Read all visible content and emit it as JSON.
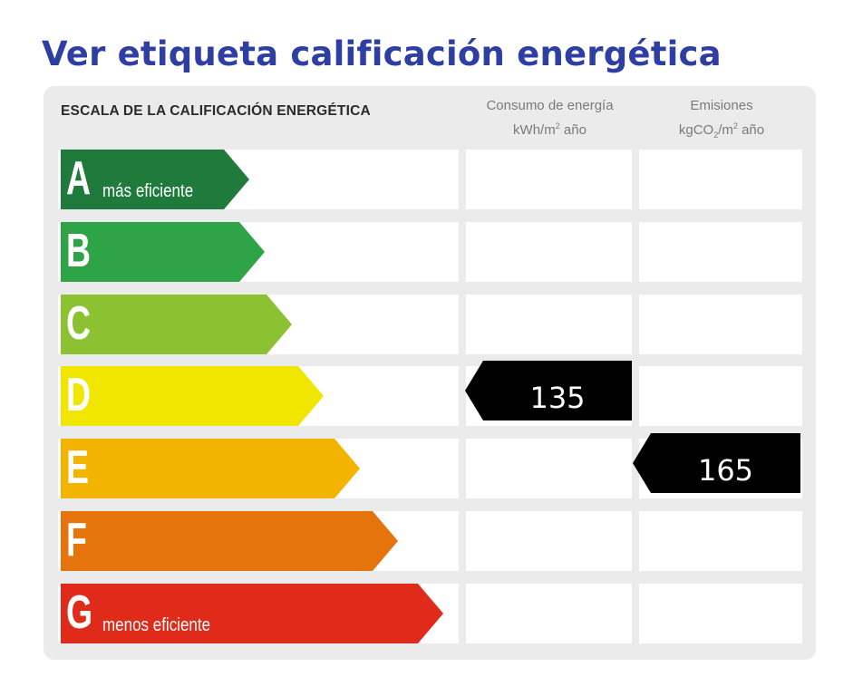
{
  "page_title": "Ver etiqueta calificación energética",
  "chart_data": {
    "type": "table",
    "title": "ESCALA DE LA CALIFICACIÓN ENERGÉTICA",
    "columns": {
      "energy": {
        "line1": "Consumo de energía",
        "line2_pre": "kWh/m",
        "line2_sup": "2",
        "line2_post": " año"
      },
      "emissions": {
        "line1": "Emisiones",
        "line2_pre": "kgCO",
        "line2_sub": "2",
        "line2_mid": "/m",
        "line2_sup": "2",
        "line2_post": " año"
      }
    },
    "classes": [
      {
        "letter": "A",
        "label": "más eficiente",
        "color": "#1f7a3b"
      },
      {
        "letter": "B",
        "label": "",
        "color": "#2ea347"
      },
      {
        "letter": "C",
        "label": "",
        "color": "#8cc231"
      },
      {
        "letter": "D",
        "label": "",
        "color": "#f1e600"
      },
      {
        "letter": "E",
        "label": "",
        "color": "#f3b400"
      },
      {
        "letter": "F",
        "label": "",
        "color": "#e5740c"
      },
      {
        "letter": "G",
        "label": "menos eficiente",
        "color": "#e02a1a"
      }
    ],
    "ratings": {
      "energy": {
        "class": "D",
        "value": "135"
      },
      "emissions": {
        "class": "E",
        "value": "165"
      }
    }
  }
}
